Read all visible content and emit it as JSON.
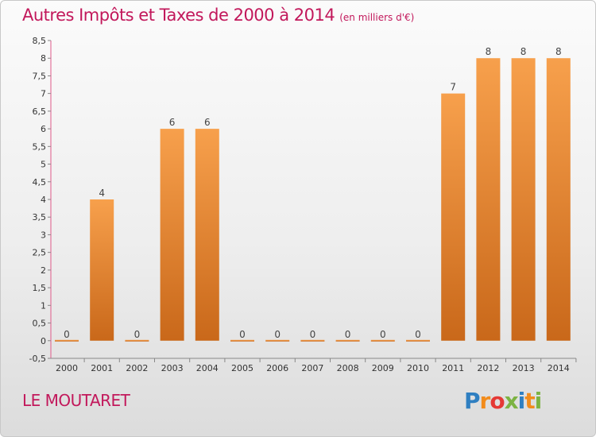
{
  "header": {
    "title": "Autres Impôts et Taxes de 2000 à 2014",
    "unit": "(en milliers d'€)"
  },
  "footer": {
    "commune": "LE MOUTARET",
    "logo": "Proxiti"
  },
  "colors": {
    "title": "#c2185b",
    "bar_top": "#f7a04c",
    "bar_bottom": "#c9681a",
    "axis": "#e05a8a"
  },
  "chart_data": {
    "type": "bar",
    "categories": [
      "2000",
      "2001",
      "2002",
      "2003",
      "2004",
      "2005",
      "2006",
      "2007",
      "2008",
      "2009",
      "2010",
      "2011",
      "2012",
      "2013",
      "2014"
    ],
    "values": [
      0,
      4,
      0,
      6,
      6,
      0,
      0,
      0,
      0,
      0,
      0,
      7,
      8,
      8,
      8
    ],
    "value_labels": [
      "0",
      "4",
      "0",
      "6",
      "6",
      "0",
      "0",
      "0",
      "0",
      "0",
      "0",
      "7",
      "8",
      "8",
      "8"
    ],
    "ylim": [
      -0.5,
      8.5
    ],
    "yticks": [
      "-0,5",
      "0",
      "0,5",
      "1",
      "1,5",
      "2",
      "2,5",
      "3",
      "3,5",
      "4",
      "4,5",
      "5",
      "5,5",
      "6",
      "6,5",
      "7",
      "7,5",
      "8",
      "8,5"
    ],
    "title": "Autres Impôts et Taxes de 2000 à 2014",
    "xlabel": "",
    "ylabel": "",
    "grid": false
  }
}
